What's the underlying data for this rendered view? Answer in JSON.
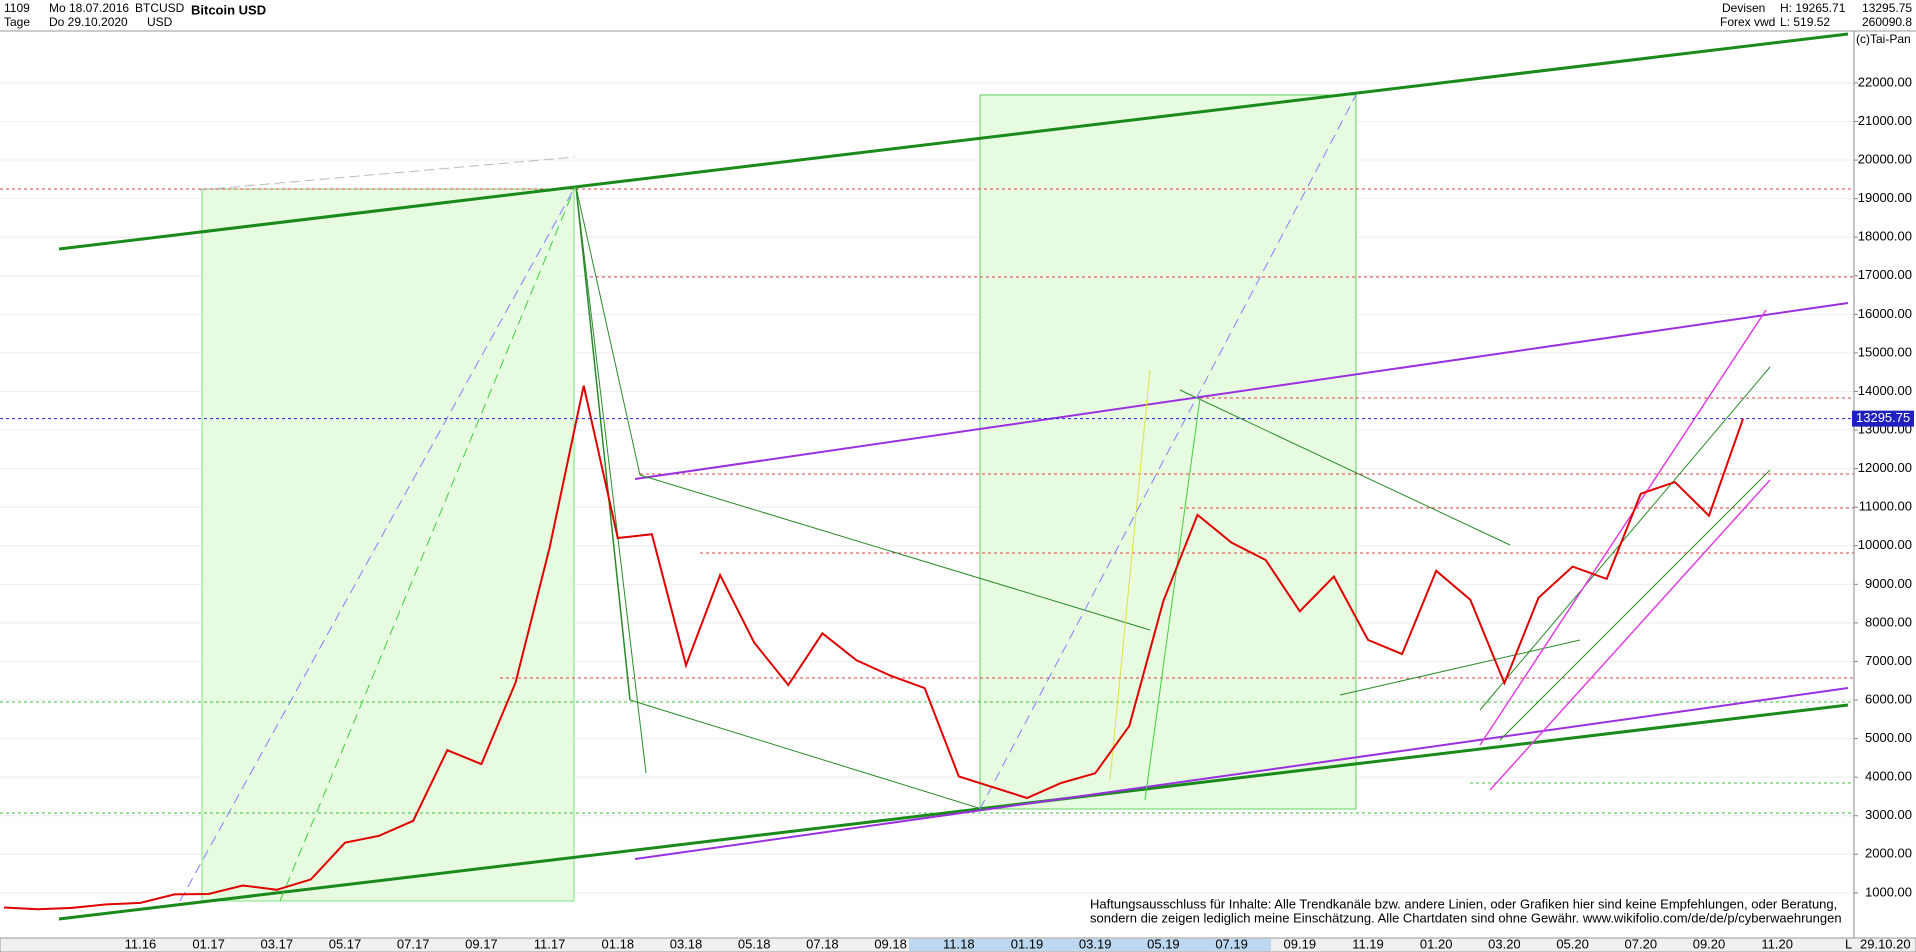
{
  "header": {
    "bars": "1109",
    "start": "Mo 18.07.2016",
    "period": "Tage",
    "end": "Do 29.10.2020",
    "symbol": "BTCUSD",
    "currency": "USD",
    "market": "Devisen",
    "source": "Forex vwd",
    "high": "H: 19265.71",
    "low": "L: 519.52",
    "volume": "260090.8",
    "copyright": "(c)Tai-Pan"
  },
  "chart_data": {
    "type": "line",
    "title": "Bitcoin USD",
    "categories": [
      null,
      null,
      null,
      null,
      "11.16",
      null,
      "01.17",
      null,
      "03.17",
      null,
      "05.17",
      null,
      "07.17",
      null,
      "09.17",
      null,
      "11.17",
      null,
      "01.18",
      null,
      "03.18",
      null,
      "05.18",
      null,
      "07.18",
      null,
      "09.18",
      null,
      "11.18",
      null,
      "01.19",
      null,
      "03.19",
      null,
      "05.19",
      null,
      "07.19",
      null,
      "09.19",
      null,
      "11.19",
      null,
      "01.20",
      null,
      "03.20",
      null,
      "05.20",
      null,
      "07.20",
      null,
      "09.20",
      null,
      "11.20"
    ],
    "series": [
      {
        "name": "BTCUSD",
        "color": "#e00000",
        "values": [
          620,
          575,
          610,
          700,
          740,
          960,
          970,
          1190,
          1080,
          1350,
          2300,
          2480,
          2870,
          4700,
          4340,
          6450,
          9950,
          14150,
          10200,
          10300,
          6900,
          9240,
          7490,
          6390,
          7730,
          7030,
          6630,
          6310,
          4020,
          3740,
          3460,
          3850,
          4100,
          5330,
          8570,
          10800,
          10080,
          9630,
          8300,
          9200,
          7560,
          7190,
          9350,
          8600,
          6440,
          8650,
          9460,
          9140,
          11350,
          11650,
          10780,
          13295.75,
          null
        ]
      }
    ],
    "last_price": {
      "value": 13295.75,
      "label": "13295.75"
    },
    "ylim": [
      -170,
      24150
    ],
    "yticks": [
      {
        "value": 1000,
        "label": "1000.00"
      },
      {
        "value": 2000,
        "label": "2000.00"
      },
      {
        "value": 3000,
        "label": "3000.00"
      },
      {
        "value": 4000,
        "label": "4000.00"
      },
      {
        "value": 5000,
        "label": "5000.00"
      },
      {
        "value": 6000,
        "label": "6000.00"
      },
      {
        "value": 7000,
        "label": "7000.00"
      },
      {
        "value": 8000,
        "label": "8000.00"
      },
      {
        "value": 9000,
        "label": "9000.00"
      },
      {
        "value": 10000,
        "label": "10000.00"
      },
      {
        "value": 11000,
        "label": "11000.00"
      },
      {
        "value": 12000,
        "label": "12000.00"
      },
      {
        "value": 13000,
        "label": "13000.00"
      },
      {
        "value": 14000,
        "label": "14000.00"
      },
      {
        "value": 15000,
        "label": "15000.00"
      },
      {
        "value": 16000,
        "label": "16000.00"
      },
      {
        "value": 17000,
        "label": "17000.00"
      },
      {
        "value": 18000,
        "label": "18000.00"
      },
      {
        "value": 19000,
        "label": "19000.00"
      },
      {
        "value": 20000,
        "label": "20000.00"
      },
      {
        "value": 21000,
        "label": "21000.00"
      },
      {
        "value": 22000,
        "label": "22000.00"
      }
    ],
    "grid": true,
    "date_label": "29.10.20",
    "axis_mode": "L",
    "disclaimer": [
      "Haftungsausschluss für Inhalte: Alle Trendkanäle bzw. andere Linien, oder Grafiken hier sind keine Empfehlungen, oder Beratung,",
      "sondern die zeigen lediglich meine  Einschätzung. Alle Chartdaten sind ohne Gewähr.  www.wikifolio.com/de/de/p/cyberwaehrungen"
    ]
  }
}
